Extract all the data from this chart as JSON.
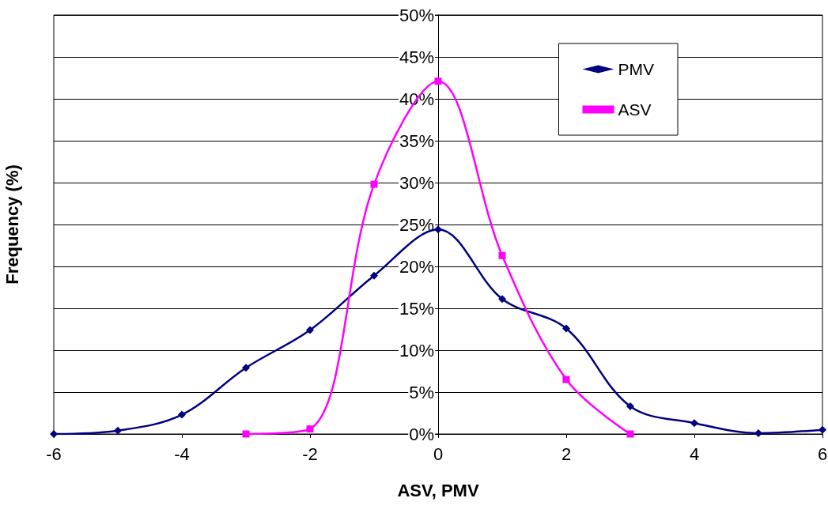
{
  "chart_data": {
    "type": "line",
    "xlabel": "ASV, PMV",
    "ylabel": "Frequency (%)",
    "xlim": [
      -6,
      6
    ],
    "xticks": [
      -6,
      -4,
      -2,
      0,
      2,
      4,
      6
    ],
    "ylim": [
      0,
      50
    ],
    "yticks": [
      {
        "value": 0,
        "label": "0%"
      },
      {
        "value": 5,
        "label": "5%"
      },
      {
        "value": 10,
        "label": "10%"
      },
      {
        "value": 15,
        "label": "15%"
      },
      {
        "value": 20,
        "label": "20%"
      },
      {
        "value": 25,
        "label": "25%"
      },
      {
        "value": 30,
        "label": "30%"
      },
      {
        "value": 35,
        "label": "35%"
      },
      {
        "value": 40,
        "label": "40%"
      },
      {
        "value": 45,
        "label": "45%"
      },
      {
        "value": 50,
        "label": "50%"
      }
    ],
    "grid": "y",
    "legend": "top right",
    "line_style": "solid",
    "series": [
      {
        "name": "PMV",
        "color": "#000080",
        "marker": "diamond",
        "x": [
          -6,
          -5,
          -4,
          -3,
          -2,
          -1,
          0,
          1,
          2,
          3,
          4,
          5,
          6
        ],
        "values": [
          0,
          0.4,
          2.3,
          7.9,
          12.4,
          18.9,
          24.4,
          16.1,
          12.6,
          3.3,
          1.3,
          0.1,
          0.5
        ]
      },
      {
        "name": "ASV",
        "color": "#ff00ff",
        "marker": "square",
        "x": [
          -3,
          -2,
          -1,
          0,
          1,
          2,
          3
        ],
        "values": [
          0,
          0.6,
          29.8,
          42.1,
          21.3,
          6.5,
          0
        ]
      }
    ]
  }
}
